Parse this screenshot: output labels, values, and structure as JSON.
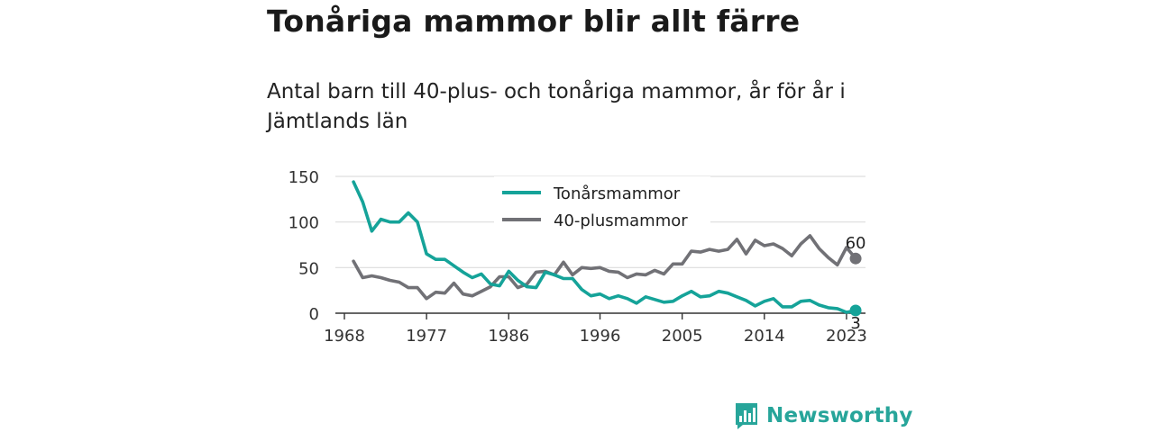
{
  "title": "Tonåriga mammor blir allt färre",
  "subtitle": "Antal barn till 40-plus- och tonåriga mammor, år för år i Jämtlands län",
  "brand": {
    "name": "Newsworthy",
    "icon": "newsworthy-logo-icon"
  },
  "colors": {
    "teen": "#15a399",
    "forty": "#717176",
    "grid": "#dddddd",
    "axis": "#333333"
  },
  "chart_data": {
    "type": "line",
    "title": "Tonåriga mammor blir allt färre",
    "xlabel": "",
    "ylabel": "",
    "xlim": [
      1968,
      2024
    ],
    "ylim": [
      0,
      150
    ],
    "x_ticks": [
      1968,
      1977,
      1986,
      1996,
      2005,
      2014,
      2023
    ],
    "y_ticks": [
      0,
      50,
      100,
      150
    ],
    "grid": true,
    "legend": "top-center",
    "x": [
      1969,
      1970,
      1971,
      1972,
      1973,
      1974,
      1975,
      1976,
      1977,
      1978,
      1979,
      1980,
      1981,
      1982,
      1983,
      1984,
      1985,
      1986,
      1987,
      1988,
      1989,
      1990,
      1991,
      1992,
      1993,
      1994,
      1995,
      1996,
      1997,
      1998,
      1999,
      2000,
      2001,
      2002,
      2003,
      2004,
      2005,
      2006,
      2007,
      2008,
      2009,
      2010,
      2011,
      2012,
      2013,
      2014,
      2015,
      2016,
      2017,
      2018,
      2019,
      2020,
      2021,
      2022,
      2023,
      2024
    ],
    "series": [
      {
        "name": "Tonårsmammor",
        "values": [
          144,
          122,
          90,
          103,
          100,
          100,
          110,
          100,
          65,
          59,
          59,
          52,
          45,
          39,
          43,
          32,
          30,
          46,
          36,
          29,
          28,
          45,
          42,
          38,
          38,
          26,
          19,
          21,
          16,
          19,
          16,
          11,
          18,
          15,
          12,
          13,
          19,
          24,
          18,
          19,
          24,
          22,
          18,
          14,
          8,
          13,
          16,
          7,
          7,
          13,
          14,
          9,
          6,
          5,
          1,
          3
        ],
        "end_label": "3"
      },
      {
        "name": "40-plusmammor",
        "values": [
          57,
          39,
          41,
          39,
          36,
          34,
          28,
          28,
          16,
          23,
          22,
          33,
          21,
          19,
          24,
          29,
          40,
          40,
          28,
          32,
          45,
          46,
          42,
          56,
          42,
          50,
          49,
          50,
          46,
          45,
          39,
          43,
          42,
          47,
          43,
          54,
          54,
          68,
          67,
          70,
          68,
          70,
          81,
          65,
          80,
          74,
          76,
          71,
          63,
          76,
          85,
          71,
          61,
          53,
          72,
          60
        ],
        "end_label": "60"
      }
    ]
  }
}
